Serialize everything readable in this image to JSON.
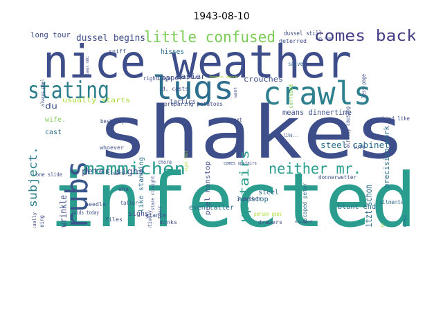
{
  "title": "1943-08-10",
  "words": [
    {
      "text": "shakes",
      "color": "#3d4e8a"
    },
    {
      "text": "infected",
      "color": "#2a9d8f"
    },
    {
      "text": "nice weather",
      "color": "#3d4e8a"
    },
    {
      "text": "crawls",
      "color": "#2c7f8c"
    },
    {
      "text": "stating",
      "color": "#2c7f8c"
    },
    {
      "text": "lugs",
      "color": "#2c6e8e"
    },
    {
      "text": "rubs",
      "color": "#3a558c"
    },
    {
      "text": "mammichen",
      "color": "#2a9d8f"
    },
    {
      "text": "little confused",
      "color": "#7ccd57"
    },
    {
      "text": "comes back",
      "color": "#433e85"
    },
    {
      "text": "neither mr.",
      "color": "#2a9d8f"
    },
    {
      "text": "upstairs",
      "color": "#2a9d8f"
    },
    {
      "text": "subject.",
      "color": "#2c7f8c"
    },
    {
      "text": "dussel begins",
      "color": "#3d4e8a"
    },
    {
      "text": "deep wrinkle",
      "color": "#3d4e8a"
    },
    {
      "text": "peter sighs",
      "color": "#3d4e8a"
    },
    {
      "text": "steel cabinet",
      "color": "#2c6e8e"
    },
    {
      "text": "spritzt schon",
      "color": "#2c6e8e"
    },
    {
      "text": "precision work",
      "color": "#2c6e8e"
    },
    {
      "text": "long tour",
      "color": "#3d4e8a"
    },
    {
      "text": "crouches",
      "color": "#3d4e8a"
    },
    {
      "text": "easier",
      "color": "#3d4e8a"
    },
    {
      "text": "copper",
      "color": "#3d4e8a"
    },
    {
      "text": "hisses",
      "color": "#2c6e8e"
    },
    {
      "text": "means dinnertime",
      "color": "#3d4e8a"
    },
    {
      "text": "usually starts",
      "color": "#a8db34"
    },
    {
      "text": "tactics",
      "color": "#3d4e8a"
    },
    {
      "text": "du",
      "color": "#3d4e8a"
    },
    {
      "text": "wife.",
      "color": "#7ccd57"
    },
    {
      "text": "cast",
      "color": "#2c6e8e"
    },
    {
      "text": "like standing",
      "color": "#2c6e8e"
    },
    {
      "text": "peel nonstop",
      "color": "#3d4e8a"
    },
    {
      "text": "nonstop",
      "color": "#2c6e8e"
    },
    {
      "text": "mother laughs",
      "color": "#2c6e8e"
    },
    {
      "text": "steel",
      "color": "#2c6e8e"
    },
    {
      "text": "sighs",
      "color": "#3d4e8a"
    },
    {
      "text": "even taller",
      "color": "#2c6e8e"
    },
    {
      "text": "blunt end",
      "color": "#2c6e8e"
    },
    {
      "text": "dussel still",
      "color": "#3d4e8a"
    },
    {
      "text": "deterred",
      "color": "#3d4e8a"
    },
    {
      "text": "sniff",
      "color": "#3d4e8a"
    },
    {
      "text": "always peel",
      "color": "#3d4e8a"
    },
    {
      "text": "d. casts",
      "color": "#3d4e8a"
    },
    {
      "text": "right eye",
      "color": "#3d4e8a"
    },
    {
      "text": "preparing potatoes",
      "color": "#3d4e8a"
    },
    {
      "text": "things get",
      "color": "#3d4e8a"
    },
    {
      "text": "hand like",
      "color": "#3d4e8a"
    },
    {
      "text": "stare straight",
      "color": "#3d4e8a"
    },
    {
      "text": "comes upstairs",
      "color": "#3d4e8a"
    },
    {
      "text": "lure",
      "color": "#3d4e8a"
    },
    {
      "text": "ailments",
      "color": "#2c6e8e"
    },
    {
      "text": "donnerwetter",
      "color": "#3d4e8a"
    },
    {
      "text": "chore",
      "color": "#3d4e8a"
    },
    {
      "text": "clears",
      "color": "#3d4e8a"
    },
    {
      "text": "aha",
      "color": "#3d4e8a"
    },
    {
      "text": "taller",
      "color": "#3d4e8a"
    },
    {
      "text": "needle",
      "color": "#3d4e8a"
    },
    {
      "text": "files",
      "color": "#3d4e8a"
    },
    {
      "text": "glance",
      "color": "#3d4e8a"
    },
    {
      "text": "minks",
      "color": "#3d4e8a"
    },
    {
      "text": "say tentatively",
      "color": "#3d4e8a"
    },
    {
      "text": "tour",
      "color": "#3d4e8a"
    },
    {
      "text": "3 mother",
      "color": "#3d4e8a"
    },
    {
      "text": "drawers",
      "color": "#3d4e8a"
    },
    {
      "text": "raids today",
      "color": "#3d4e8a"
    },
    {
      "text": "get going",
      "color": "#3d4e8a"
    },
    {
      "text": "one slide",
      "color": "#3d4e8a"
    },
    {
      "text": "ist usually",
      "color": "#3d4e8a"
    },
    {
      "text": "whoever",
      "color": "#3d4e8a"
    },
    {
      "text": "best way",
      "color": "#3d4e8a"
    },
    {
      "text": "like...",
      "color": "#3d4e8a"
    },
    {
      "text": "escaped peter",
      "color": "#2c6e8e"
    },
    {
      "text": "salve",
      "color": "#2c6e8e"
    },
    {
      "text": "confused",
      "color": "#7ccd57"
    },
    {
      "text": "already causing",
      "color": "#3d4e8a"
    },
    {
      "text": "less page",
      "color": "#3d4e8a"
    },
    {
      "text": "always rabi",
      "color": "#3d4e8a"
    },
    {
      "text": "person goes",
      "color": "#a8db34"
    },
    {
      "text": "right foot",
      "color": "#a8db34"
    },
    {
      "text": "margot looks",
      "color": "#2c6e8e"
    },
    {
      "text": "mother comes",
      "color": "#a8db34"
    },
    {
      "text": "exchange",
      "color": "#3d4e8a"
    },
    {
      "text": "barely alive",
      "color": "#3d4e8a"
    },
    {
      "text": "bench desk",
      "color": "#a8db34"
    },
    {
      "text": "escaped",
      "color": "#3d4e8a"
    },
    {
      "text": "want",
      "color": "#3d4e8a"
    },
    {
      "text": "gun lugs",
      "color": "#3d4e8a"
    }
  ]
}
